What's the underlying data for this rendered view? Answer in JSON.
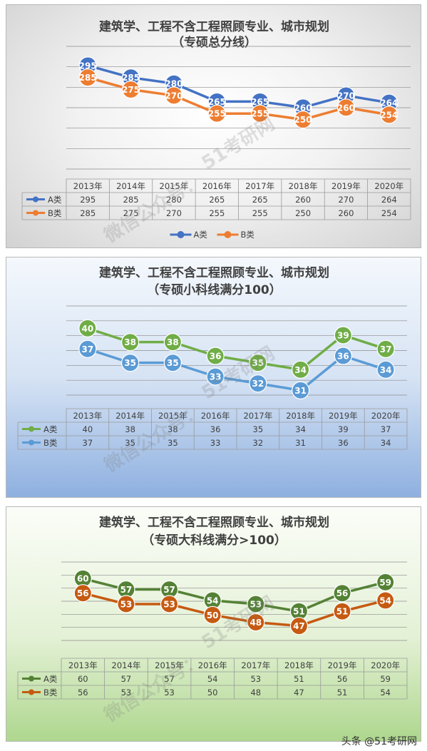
{
  "footer": "头条 @51考研网",
  "watermark": [
    "微信公众号：",
    "51考研网"
  ],
  "chart_data": [
    {
      "type": "line",
      "title": [
        "建筑学、工程不含工程照顾专业、城市规划",
        "（专硕总分线）"
      ],
      "categories": [
        "2013年",
        "2014年",
        "2015年",
        "2016年",
        "2017年",
        "2018年",
        "2019年",
        "2020年"
      ],
      "series": [
        {
          "name": "A类",
          "values": [
            295,
            285,
            280,
            265,
            265,
            260,
            270,
            264
          ],
          "color": "#4472c4"
        },
        {
          "name": "B类",
          "values": [
            285,
            275,
            270,
            255,
            255,
            250,
            260,
            254
          ],
          "color": "#ed7d31"
        }
      ],
      "ylim": [
        210,
        305
      ],
      "grid": true,
      "legend": "bottom",
      "data_table": true
    },
    {
      "type": "line",
      "title": [
        "建筑学、工程不含工程照顾专业、城市规划",
        "（专硕小科线满分100）"
      ],
      "categories": [
        "2013年",
        "2014年",
        "2015年",
        "2016年",
        "2017年",
        "2018年",
        "2019年",
        "2020年"
      ],
      "series": [
        {
          "name": "A类",
          "values": [
            40,
            38,
            38,
            36,
            35,
            34,
            39,
            37
          ],
          "color": "#70ad47"
        },
        {
          "name": "B类",
          "values": [
            37,
            35,
            35,
            33,
            32,
            31,
            36,
            34
          ],
          "color": "#5b9bd5"
        }
      ],
      "ylim": [
        30,
        42
      ],
      "grid": true,
      "legend": "none",
      "data_table": true
    },
    {
      "type": "line",
      "title": [
        "建筑学、工程不含工程照顾专业、城市规划",
        "（专硕大科线满分>100）"
      ],
      "categories": [
        "2013年",
        "2014年",
        "2015年",
        "2016年",
        "2017年",
        "2018年",
        "2019年",
        "2020年"
      ],
      "series": [
        {
          "name": "A类",
          "values": [
            60,
            57,
            57,
            54,
            53,
            51,
            56,
            59
          ],
          "color": "#548235"
        },
        {
          "name": "B类",
          "values": [
            56,
            53,
            53,
            50,
            48,
            47,
            51,
            54
          ],
          "color": "#c55a11"
        }
      ],
      "ylim": [
        44,
        62
      ],
      "grid": true,
      "legend": "none",
      "data_table": true
    }
  ]
}
